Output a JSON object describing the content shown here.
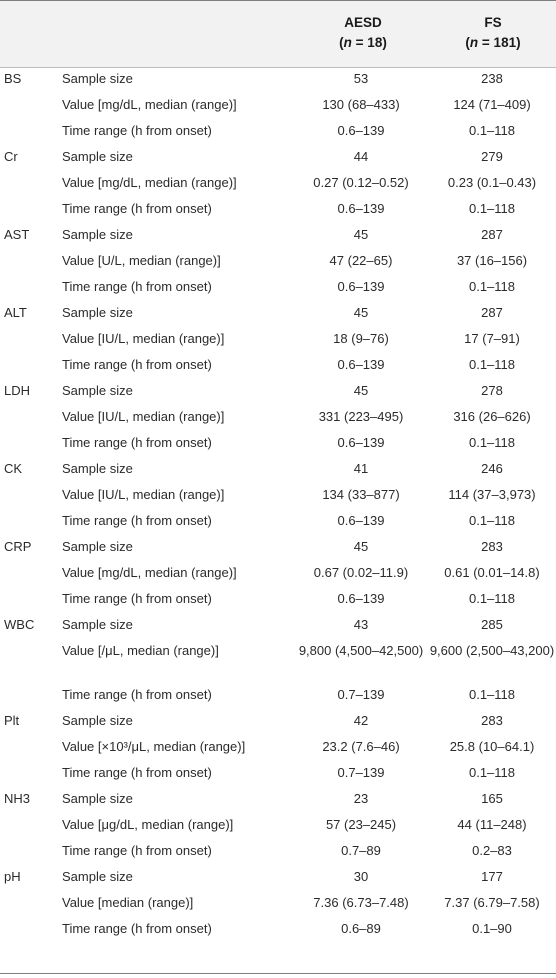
{
  "header": {
    "col_aesd": "AESD",
    "col_aesd_n": "(n = 18)",
    "col_fs": "FS",
    "col_fs_n": "(n = 181)"
  },
  "rows": [
    {
      "analyte": "BS",
      "measure": "Sample size",
      "aesd": "53",
      "fs": "238"
    },
    {
      "analyte": "",
      "measure": "Value [mg/dL, median (range)]",
      "aesd": "130 (68–433)",
      "fs": "124 (71–409)"
    },
    {
      "analyte": "",
      "measure": "Time range (h from onset)",
      "aesd": "0.6–139",
      "fs": "0.1–118"
    },
    {
      "analyte": "Cr",
      "measure": "Sample size",
      "aesd": "44",
      "fs": "279"
    },
    {
      "analyte": "",
      "measure": "Value [mg/dL, median (range)]",
      "aesd": "0.27 (0.12–0.52)",
      "fs": "0.23 (0.1–0.43)"
    },
    {
      "analyte": "",
      "measure": "Time range (h from onset)",
      "aesd": "0.6–139",
      "fs": "0.1–118"
    },
    {
      "analyte": "AST",
      "measure": "Sample size",
      "aesd": "45",
      "fs": "287"
    },
    {
      "analyte": "",
      "measure": "Value [U/L, median (range)]",
      "aesd": "47 (22–65)",
      "fs": "37 (16–156)"
    },
    {
      "analyte": "",
      "measure": "Time range (h from onset)",
      "aesd": "0.6–139",
      "fs": "0.1–118"
    },
    {
      "analyte": "ALT",
      "measure": "Sample size",
      "aesd": "45",
      "fs": "287"
    },
    {
      "analyte": "",
      "measure": "Value [IU/L, median (range)]",
      "aesd": "18 (9–76)",
      "fs": "17 (7–91)"
    },
    {
      "analyte": "",
      "measure": "Time range (h from onset)",
      "aesd": "0.6–139",
      "fs": "0.1–118"
    },
    {
      "analyte": "LDH",
      "measure": "Sample size",
      "aesd": "45",
      "fs": "278"
    },
    {
      "analyte": "",
      "measure": "Value [IU/L, median (range)]",
      "aesd": "331 (223–495)",
      "fs": "316 (26–626)"
    },
    {
      "analyte": "",
      "measure": "Time range (h from onset)",
      "aesd": "0.6–139",
      "fs": "0.1–118"
    },
    {
      "analyte": "CK",
      "measure": "Sample size",
      "aesd": "41",
      "fs": "246"
    },
    {
      "analyte": "",
      "measure": "Value [IU/L, median (range)]",
      "aesd": "134 (33–877)",
      "fs": "114 (37–3,973)"
    },
    {
      "analyte": "",
      "measure": "Time range (h from onset)",
      "aesd": "0.6–139",
      "fs": "0.1–118"
    },
    {
      "analyte": "CRP",
      "measure": "Sample size",
      "aesd": "45",
      "fs": "283"
    },
    {
      "analyte": "",
      "measure": "Value [mg/dL, median (range)]",
      "aesd": "0.67 (0.02–11.9)",
      "fs": "0.61 (0.01–14.8)"
    },
    {
      "analyte": "",
      "measure": "Time range (h from onset)",
      "aesd": "0.6–139",
      "fs": "0.1–118"
    },
    {
      "analyte": "WBC",
      "measure": "Sample size",
      "aesd": "43",
      "fs": "285"
    },
    {
      "analyte": "",
      "measure": "Value [/μL, median (range)]",
      "aesd": "9,800 (4,500–42,500)",
      "fs": "9,600 (2,500–43,200)",
      "tall": true
    },
    {
      "analyte": "",
      "measure": "Time range (h from onset)",
      "aesd": "0.7–139",
      "fs": "0.1–118"
    },
    {
      "analyte": "Plt",
      "measure": "Sample size",
      "aesd": "42",
      "fs": "283"
    },
    {
      "analyte": "",
      "measure": "Value [×10³/μL, median (range)]",
      "aesd": "23.2 (7.6–46)",
      "fs": "25.8 (10–64.1)"
    },
    {
      "analyte": "",
      "measure": "Time range (h from onset)",
      "aesd": "0.7–139",
      "fs": "0.1–118"
    },
    {
      "analyte": "NH3",
      "measure": "Sample size",
      "aesd": "23",
      "fs": "165"
    },
    {
      "analyte": "",
      "measure": "Value [μg/dL, median (range)]",
      "aesd": "57 (23–245)",
      "fs": "44 (11–248)"
    },
    {
      "analyte": "",
      "measure": "Time range (h from onset)",
      "aesd": "0.7–89",
      "fs": "0.2–83"
    },
    {
      "analyte": "pH",
      "measure": "Sample size",
      "aesd": "30",
      "fs": "177"
    },
    {
      "analyte": "",
      "measure": "Value [median (range)]",
      "aesd": "7.36 (6.73–7.48)",
      "fs": "7.37 (6.79–7.58)"
    },
    {
      "analyte": "",
      "measure": "Time range (h from onset)",
      "aesd": "0.6–89",
      "fs": "0.1–90"
    }
  ]
}
